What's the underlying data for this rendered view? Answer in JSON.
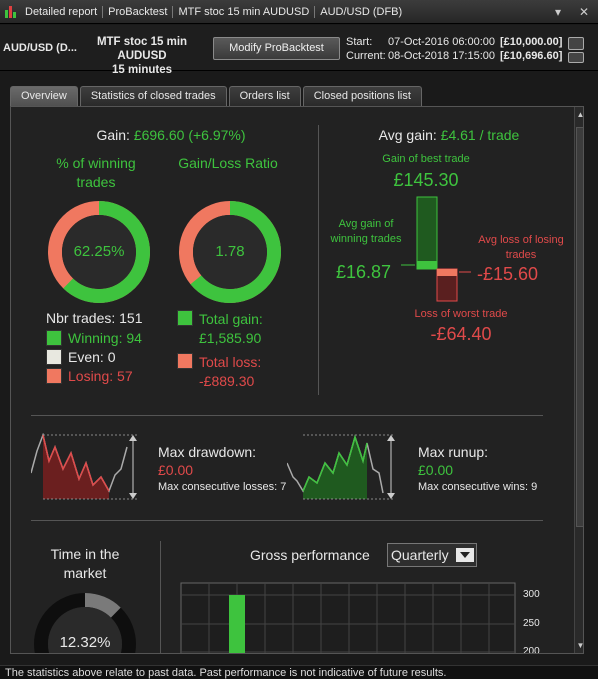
{
  "window": {
    "title_segments": [
      "Detailed report",
      "ProBacktest",
      "MTF stoc 15 min AUDUSD",
      "AUD/USD (DFB)"
    ],
    "minimize": "▾",
    "close": "✕"
  },
  "toolbar": {
    "instrument": "AUD/USD (D...",
    "strategy_name": "MTF stoc 15 min AUDUSD",
    "timeframe": "15 minutes",
    "modify_button": "Modify ProBacktest",
    "start_label": "Start:",
    "start_value": "07-Oct-2016 06:00:00",
    "start_capital": "[£10,000.00]",
    "current_label": "Current:",
    "current_value": "08-Oct-2018 17:15:00",
    "current_capital": "[£10,696.60]"
  },
  "tabs": [
    "Overview",
    "Statistics of closed trades",
    "Orders list",
    "Closed positions list"
  ],
  "overview": {
    "gain_label": "Gain:",
    "gain_value": "£696.60 (+6.97%)",
    "winning_title": "% of winning trades",
    "winning_pct": "62.25%",
    "winning_fraction": 0.6225,
    "ratio_title": "Gain/Loss Ratio",
    "ratio_value": "1.78",
    "ratio_fraction": 0.64,
    "nbr_trades_label": "Nbr trades: 151",
    "winning": "Winning: 94",
    "even": "Even: 0",
    "losing": "Losing: 57",
    "total_gain_label": "Total gain:",
    "total_gain_value": "£1,585.90",
    "total_loss_label": "Total loss:",
    "total_loss_value": "-£889.30",
    "avg_gain_label": "Avg gain:",
    "avg_gain_value": "£4.61 / trade",
    "best_trade_label": "Gain of best trade",
    "best_trade_value": "£145.30",
    "avg_win_label": "Avg gain of winning trades",
    "avg_win_value": "£16.87",
    "avg_loss_label": "Avg loss of losing trades",
    "avg_loss_value": "-£15.60",
    "worst_trade_label": "Loss of worst trade",
    "worst_trade_value": "-£64.40",
    "max_drawdown_label": "Max drawdown:",
    "max_drawdown_value": "£0.00",
    "max_cons_losses": "Max consecutive losses: 7",
    "max_runup_label": "Max runup:",
    "max_runup_value": "£0.00",
    "max_cons_wins": "Max consecutive wins: 9",
    "time_in_market_title": "Time in the market",
    "time_in_market_value": "12.32%",
    "time_in_market_fraction": 0.1232,
    "gross_perf_label": "Gross performance",
    "gross_perf_period": "Quarterly",
    "gross_ticks": [
      "300",
      "250",
      "200"
    ]
  },
  "colors": {
    "green": "#3ec33e",
    "red": "#e04a4a",
    "salmon": "#f07860",
    "dark_green": "#1f6b1f",
    "dark_red": "#6b1f1f"
  },
  "status": {
    "disclaimer": "The statistics above relate to past data. Past performance is not indicative of future results."
  }
}
